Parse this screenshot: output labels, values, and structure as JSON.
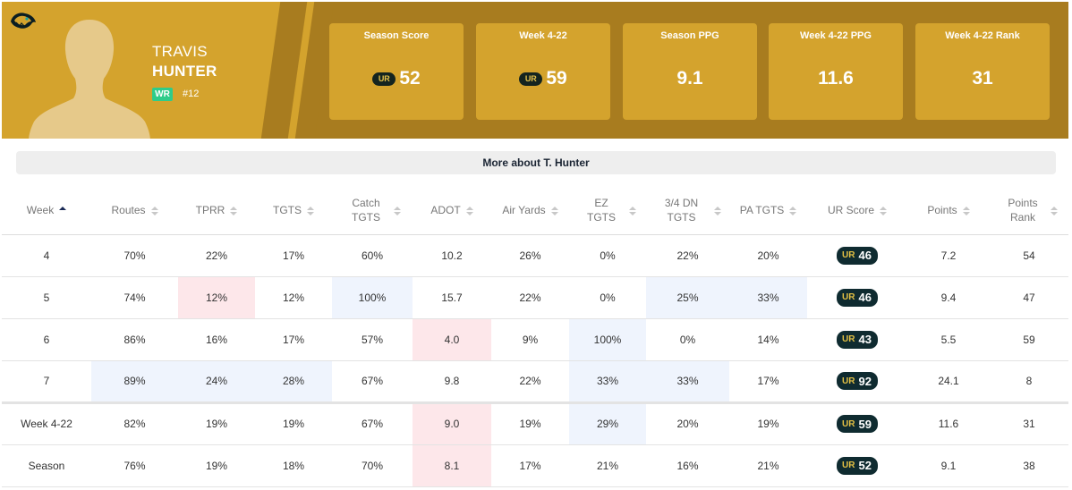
{
  "colors": {
    "hero_dark": "#a87c1f",
    "hero_light": "#d4a32d",
    "position_badge": "#2ecc8a",
    "highlight_good": "#eff4fd",
    "highlight_bad": "#fde7ea"
  },
  "player": {
    "first_name": "TRAVIS",
    "last_name": "HUNTER",
    "position": "WR",
    "jersey": "#12",
    "team_logo": "jaguar-logo-icon"
  },
  "stat_cards": [
    {
      "label": "Season Score",
      "value": "52",
      "badge": "UR"
    },
    {
      "label": "Week 4-22",
      "value": "59",
      "badge": "UR"
    },
    {
      "label": "Season PPG",
      "value": "9.1",
      "badge": ""
    },
    {
      "label": "Week 4-22 PPG",
      "value": "11.6",
      "badge": ""
    },
    {
      "label": "Week 4-22 Rank",
      "value": "31",
      "badge": ""
    }
  ],
  "more_about": "More about T. Hunter",
  "table": {
    "headers": [
      "Week",
      "Routes",
      "TPRR",
      "TGTS",
      "Catch TGTS",
      "ADOT",
      "Air Yards",
      "EZ TGTS",
      "3/4 DN TGTS",
      "PA TGTS",
      "UR Score",
      "Points",
      "Points Rank"
    ],
    "ur_badge": "UR",
    "rows": [
      {
        "week": "4",
        "cells": [
          "70%",
          "22%",
          "17%",
          "60%",
          "10.2",
          "26%",
          "0%",
          "22%",
          "20%"
        ],
        "ur": "46",
        "points": "7.2",
        "rank": "54"
      },
      {
        "week": "5",
        "cells": [
          "74%",
          "12%",
          "12%",
          "100%",
          "15.7",
          "22%",
          "0%",
          "25%",
          "33%"
        ],
        "ur": "46",
        "points": "9.4",
        "rank": "47"
      },
      {
        "week": "6",
        "cells": [
          "86%",
          "16%",
          "17%",
          "57%",
          "4.0",
          "9%",
          "100%",
          "0%",
          "14%"
        ],
        "ur": "43",
        "points": "5.5",
        "rank": "59"
      },
      {
        "week": "7",
        "cells": [
          "89%",
          "24%",
          "28%",
          "67%",
          "9.8",
          "22%",
          "33%",
          "33%",
          "17%"
        ],
        "ur": "92",
        "points": "24.1",
        "rank": "8"
      },
      {
        "week": "Week 4-22",
        "cells": [
          "82%",
          "19%",
          "19%",
          "67%",
          "9.0",
          "19%",
          "29%",
          "20%",
          "19%"
        ],
        "ur": "59",
        "points": "11.6",
        "rank": "31"
      },
      {
        "week": "Season",
        "cells": [
          "76%",
          "19%",
          "18%",
          "70%",
          "8.1",
          "17%",
          "21%",
          "16%",
          "21%"
        ],
        "ur": "52",
        "points": "9.1",
        "rank": "38"
      }
    ]
  }
}
